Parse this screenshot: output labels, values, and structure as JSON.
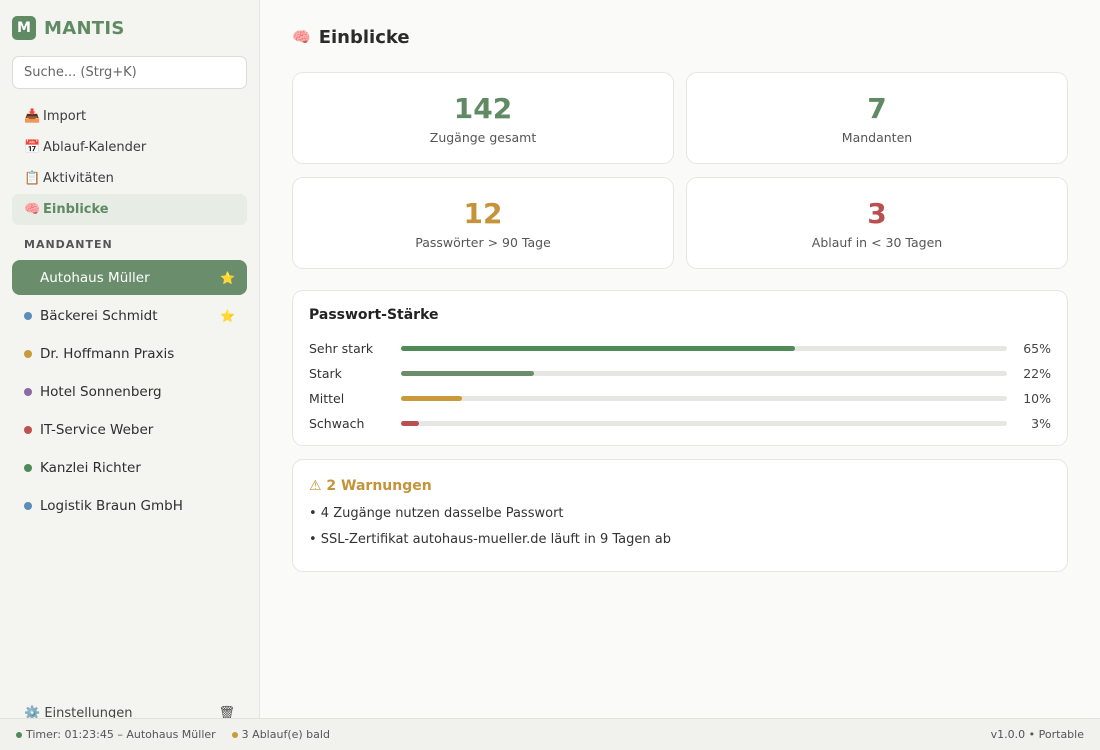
{
  "brand": {
    "logo_letter": "M",
    "name": "MANTIS",
    "color": "#5f8a63"
  },
  "search": {
    "placeholder": "Suche... (Strg+K)",
    "value": ""
  },
  "nav": [
    {
      "icon": "inbox-tray-icon",
      "glyph": "📥",
      "label": "Import"
    },
    {
      "icon": "calendar-icon",
      "glyph": "📅",
      "label": "Ablauf-Kalender"
    },
    {
      "icon": "clipboard-icon",
      "glyph": "📋",
      "label": "Aktivitäten"
    },
    {
      "icon": "brain-icon",
      "glyph": "🧠",
      "label": "Einblicke",
      "active": true
    }
  ],
  "clients_section_label": "MANDANTEN",
  "clients": [
    {
      "name": "Autohaus Müller",
      "color": "#4f8a57",
      "starred": true,
      "active": true
    },
    {
      "name": "Bäckerei Schmidt",
      "color": "#5b8db8",
      "starred": true
    },
    {
      "name": "Dr. Hoffmann Praxis",
      "color": "#c89a3a"
    },
    {
      "name": "Hotel Sonnenberg",
      "color": "#8a6aa0"
    },
    {
      "name": "IT-Service Weber",
      "color": "#c0504d"
    },
    {
      "name": "Kanzlei Richter",
      "color": "#4f8a57"
    },
    {
      "name": "Logistik Braun GmbH",
      "color": "#5b8db8"
    }
  ],
  "sidebar_footer": {
    "settings_glyph": "⚙️",
    "settings_label": "Einstellungen",
    "trash_glyph": "🗑"
  },
  "page": {
    "title_glyph": "🧠",
    "title": "Einblicke"
  },
  "stats": [
    {
      "value": "142",
      "label": "Zugänge gesamt",
      "color": "#5f8a63"
    },
    {
      "value": "7",
      "label": "Mandanten",
      "color": "#5f8a63"
    },
    {
      "value": "12",
      "label": "Passwörter > 90 Tage",
      "color": "#c4933a"
    },
    {
      "value": "3",
      "label": "Ablauf in < 30 Tagen",
      "color": "#b94f4f"
    }
  ],
  "strength": {
    "title": "Passwort-Stärke",
    "rows": [
      {
        "label": "Sehr stark",
        "percent": 65,
        "percent_text": "65%",
        "color": "#4f8a57"
      },
      {
        "label": "Stark",
        "percent": 22,
        "percent_text": "22%",
        "color": "#6a8e6c"
      },
      {
        "label": "Mittel",
        "percent": 10,
        "percent_text": "10%",
        "color": "#c89a3a"
      },
      {
        "label": "Schwach",
        "percent": 3,
        "percent_text": "3%",
        "color": "#b94f4f"
      }
    ]
  },
  "warnings": {
    "title": "⚠ 2 Warnungen",
    "items": [
      "• 4 Zugänge nutzen dasselbe Passwort",
      "• SSL-Zertifikat autohaus-mueller.de läuft in 9 Tagen ab"
    ]
  },
  "statusbar": {
    "timer": {
      "text": "Timer: 01:23:45 – Autohaus Müller",
      "color": "#4f8a57"
    },
    "expiry": {
      "text": "3 Ablauf(e) bald",
      "color": "#c89a3a"
    },
    "version": "v1.0.0 • Portable"
  }
}
